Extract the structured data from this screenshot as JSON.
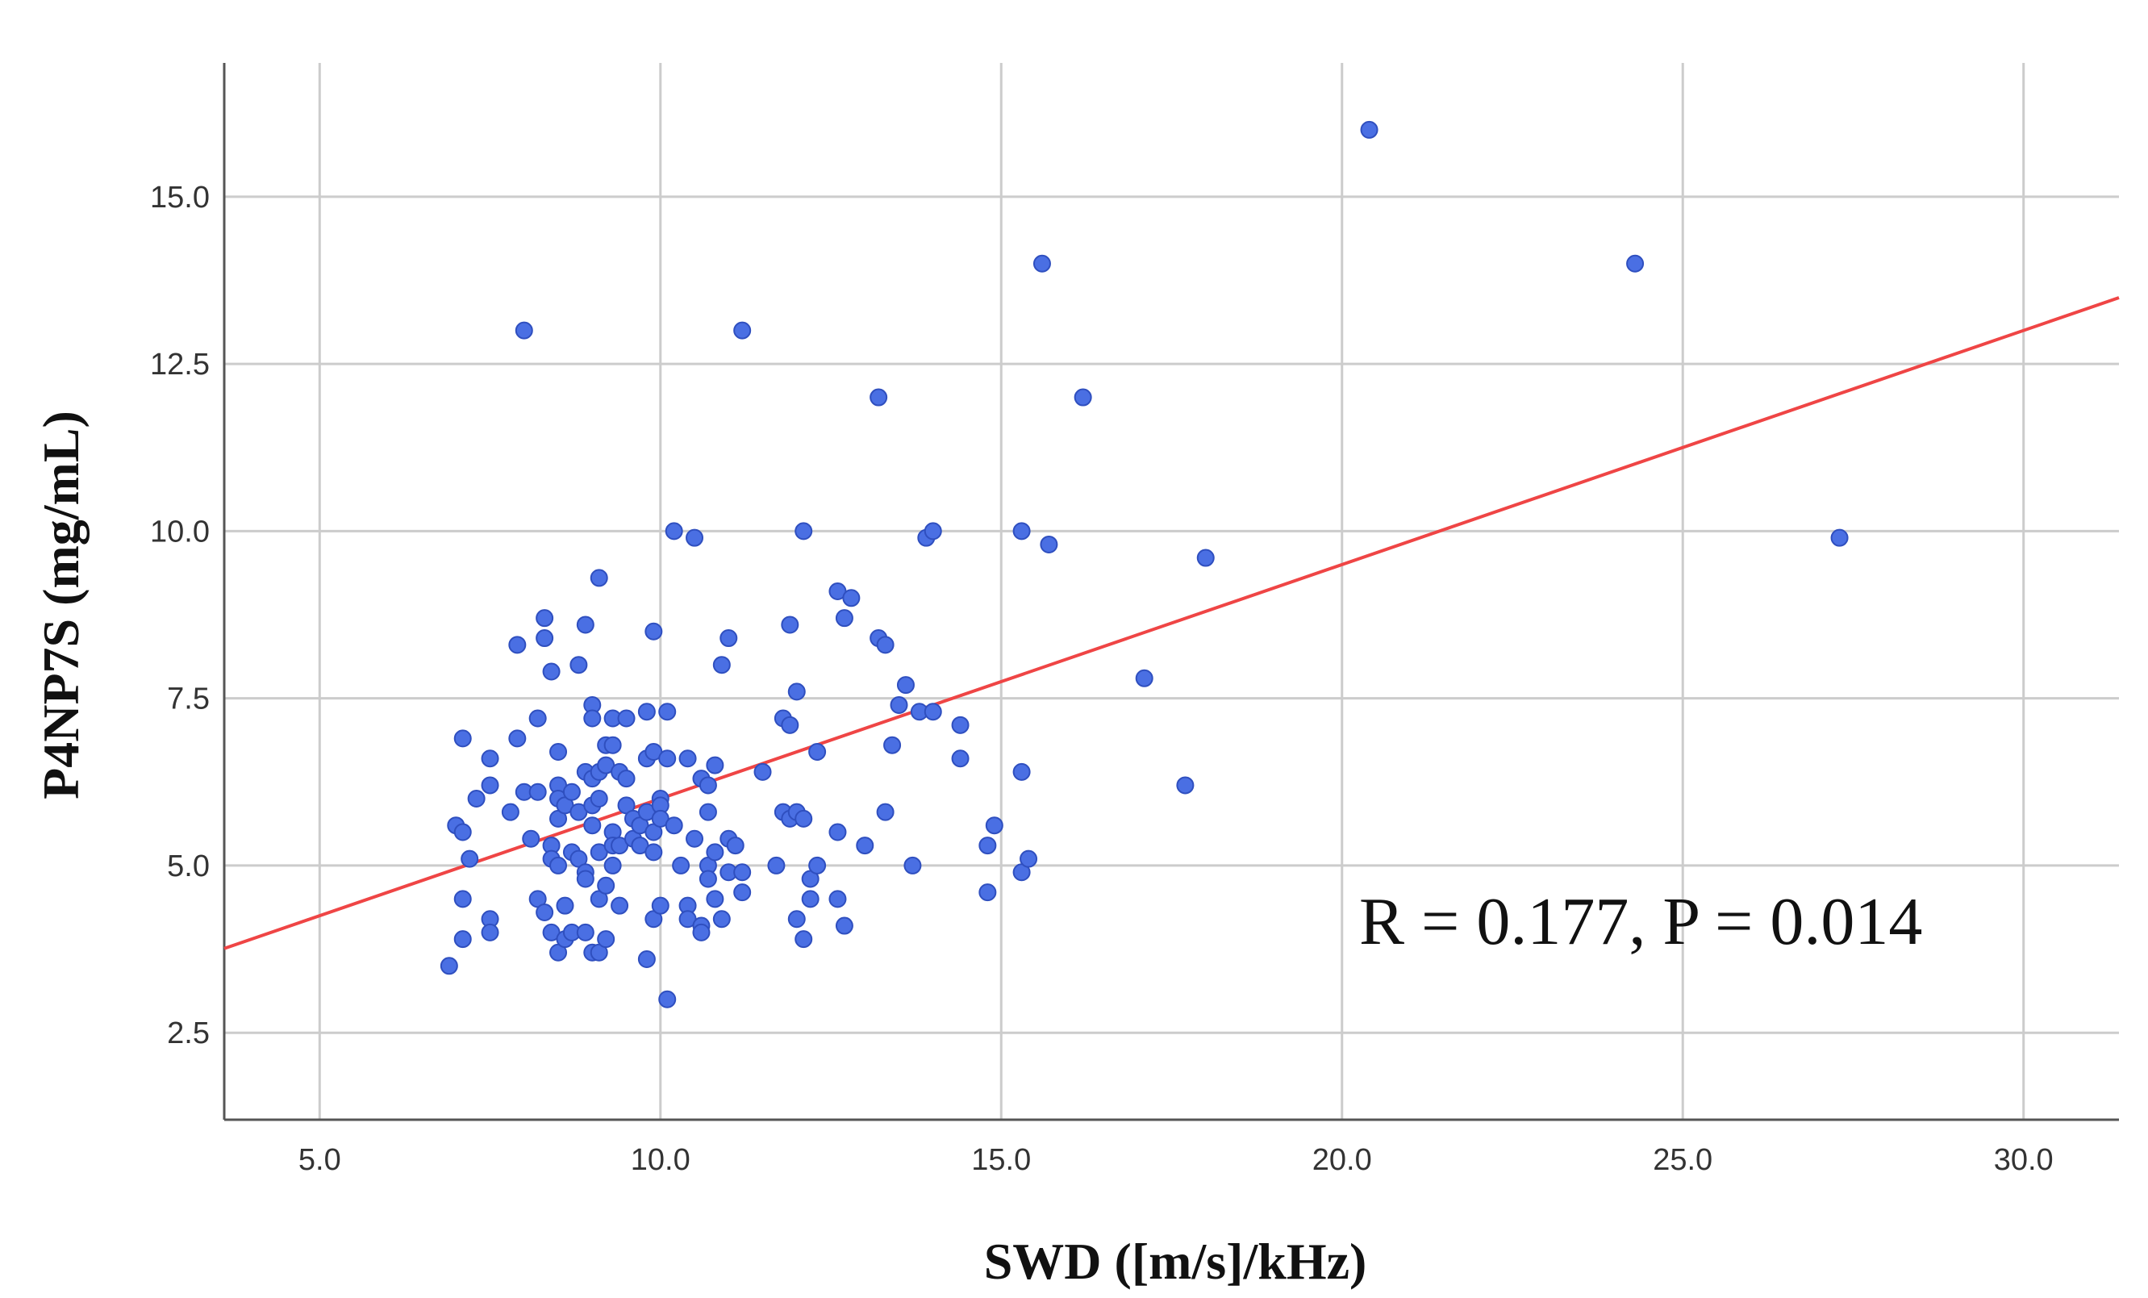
{
  "chart_data": {
    "type": "scatter",
    "title": "",
    "xlabel": "SWD ([m/s]/kHz)",
    "ylabel": "P4NP7S (mg/mL)",
    "xlim": [
      3.6,
      31.4
    ],
    "ylim": [
      1.2,
      17.0
    ],
    "x_ticks": [
      5.0,
      10.0,
      15.0,
      20.0,
      25.0,
      30.0
    ],
    "x_tick_labels": [
      "5.0",
      "10.0",
      "15.0",
      "20.0",
      "25.0",
      "30.0"
    ],
    "y_ticks": [
      2.5,
      5.0,
      7.5,
      10.0,
      12.5,
      15.0
    ],
    "y_tick_labels": [
      "2.5",
      "5.0",
      "7.5",
      "10.0",
      "12.5",
      "15.0"
    ],
    "grid": true,
    "point_color": "#4a6fe3",
    "point_edge_color": "#2f4fbf",
    "fit_line_color": "#ef4545",
    "fit_line": {
      "slope": 0.35,
      "intercept": 2.5
    },
    "annotation": "R = 0.177, P = 0.014",
    "points": [
      [
        6.9,
        3.5
      ],
      [
        7.0,
        5.6
      ],
      [
        7.1,
        5.5
      ],
      [
        7.1,
        6.9
      ],
      [
        7.1,
        4.5
      ],
      [
        7.1,
        3.9
      ],
      [
        7.2,
        5.1
      ],
      [
        7.3,
        6.0
      ],
      [
        7.5,
        6.6
      ],
      [
        7.5,
        6.2
      ],
      [
        7.5,
        4.2
      ],
      [
        7.5,
        4.0
      ],
      [
        7.8,
        5.8
      ],
      [
        7.9,
        6.9
      ],
      [
        7.9,
        8.3
      ],
      [
        8.0,
        13.0
      ],
      [
        8.0,
        6.1
      ],
      [
        8.1,
        5.4
      ],
      [
        8.2,
        7.2
      ],
      [
        8.2,
        6.1
      ],
      [
        8.2,
        4.5
      ],
      [
        8.3,
        8.7
      ],
      [
        8.3,
        8.4
      ],
      [
        8.3,
        4.3
      ],
      [
        8.4,
        7.9
      ],
      [
        8.4,
        5.3
      ],
      [
        8.4,
        5.1
      ],
      [
        8.4,
        4.0
      ],
      [
        8.5,
        6.7
      ],
      [
        8.5,
        6.2
      ],
      [
        8.5,
        6.0
      ],
      [
        8.5,
        5.7
      ],
      [
        8.5,
        5.0
      ],
      [
        8.5,
        3.7
      ],
      [
        8.6,
        5.9
      ],
      [
        8.6,
        4.4
      ],
      [
        8.6,
        3.9
      ],
      [
        8.7,
        6.1
      ],
      [
        8.7,
        5.2
      ],
      [
        8.7,
        4.0
      ],
      [
        8.8,
        8.0
      ],
      [
        8.8,
        5.8
      ],
      [
        8.8,
        5.1
      ],
      [
        8.9,
        8.6
      ],
      [
        8.9,
        6.4
      ],
      [
        8.9,
        4.9
      ],
      [
        8.9,
        4.8
      ],
      [
        8.9,
        4.0
      ],
      [
        9.0,
        7.4
      ],
      [
        9.0,
        7.2
      ],
      [
        9.0,
        6.3
      ],
      [
        9.0,
        5.9
      ],
      [
        9.0,
        5.6
      ],
      [
        9.0,
        3.7
      ],
      [
        9.1,
        9.3
      ],
      [
        9.1,
        6.4
      ],
      [
        9.1,
        6.0
      ],
      [
        9.1,
        5.2
      ],
      [
        9.1,
        4.5
      ],
      [
        9.1,
        3.7
      ],
      [
        9.2,
        6.8
      ],
      [
        9.2,
        6.5
      ],
      [
        9.2,
        4.7
      ],
      [
        9.2,
        3.9
      ],
      [
        9.3,
        7.2
      ],
      [
        9.3,
        6.8
      ],
      [
        9.3,
        5.5
      ],
      [
        9.3,
        5.3
      ],
      [
        9.3,
        5.0
      ],
      [
        9.4,
        6.4
      ],
      [
        9.4,
        5.3
      ],
      [
        9.4,
        4.4
      ],
      [
        9.5,
        7.2
      ],
      [
        9.5,
        6.3
      ],
      [
        9.5,
        5.9
      ],
      [
        9.6,
        5.7
      ],
      [
        9.6,
        5.4
      ],
      [
        9.7,
        5.6
      ],
      [
        9.7,
        5.3
      ],
      [
        9.8,
        7.3
      ],
      [
        9.8,
        6.6
      ],
      [
        9.8,
        5.8
      ],
      [
        9.8,
        3.6
      ],
      [
        9.9,
        8.5
      ],
      [
        9.9,
        6.7
      ],
      [
        9.9,
        5.5
      ],
      [
        9.9,
        5.2
      ],
      [
        9.9,
        4.2
      ],
      [
        10.0,
        6.0
      ],
      [
        10.0,
        5.9
      ],
      [
        10.0,
        5.7
      ],
      [
        10.0,
        4.4
      ],
      [
        10.1,
        7.3
      ],
      [
        10.1,
        6.6
      ],
      [
        10.1,
        3.0
      ],
      [
        10.2,
        10.0
      ],
      [
        10.2,
        5.6
      ],
      [
        10.3,
        5.0
      ],
      [
        10.4,
        6.6
      ],
      [
        10.4,
        4.4
      ],
      [
        10.4,
        4.2
      ],
      [
        10.5,
        9.9
      ],
      [
        10.5,
        5.4
      ],
      [
        10.6,
        6.3
      ],
      [
        10.6,
        4.1
      ],
      [
        10.6,
        4.0
      ],
      [
        10.7,
        6.2
      ],
      [
        10.7,
        5.8
      ],
      [
        10.7,
        5.0
      ],
      [
        10.7,
        4.8
      ],
      [
        10.8,
        6.5
      ],
      [
        10.8,
        5.2
      ],
      [
        10.8,
        4.5
      ],
      [
        10.9,
        8.0
      ],
      [
        10.9,
        4.2
      ],
      [
        11.0,
        8.4
      ],
      [
        11.0,
        5.4
      ],
      [
        11.0,
        4.9
      ],
      [
        11.1,
        5.3
      ],
      [
        11.2,
        13.0
      ],
      [
        11.2,
        4.9
      ],
      [
        11.2,
        4.6
      ],
      [
        11.5,
        6.4
      ],
      [
        11.7,
        5.0
      ],
      [
        11.8,
        7.2
      ],
      [
        11.8,
        5.8
      ],
      [
        11.9,
        8.6
      ],
      [
        11.9,
        7.1
      ],
      [
        11.9,
        5.7
      ],
      [
        12.0,
        7.6
      ],
      [
        12.0,
        5.8
      ],
      [
        12.0,
        4.2
      ],
      [
        12.1,
        10.0
      ],
      [
        12.1,
        5.7
      ],
      [
        12.1,
        3.9
      ],
      [
        12.2,
        4.8
      ],
      [
        12.2,
        4.5
      ],
      [
        12.3,
        6.7
      ],
      [
        12.3,
        5.0
      ],
      [
        12.6,
        9.1
      ],
      [
        12.6,
        5.5
      ],
      [
        12.6,
        4.5
      ],
      [
        12.7,
        8.7
      ],
      [
        12.7,
        4.1
      ],
      [
        12.8,
        9.0
      ],
      [
        13.0,
        5.3
      ],
      [
        13.2,
        12.0
      ],
      [
        13.2,
        8.4
      ],
      [
        13.3,
        8.3
      ],
      [
        13.3,
        5.8
      ],
      [
        13.4,
        6.8
      ],
      [
        13.5,
        7.4
      ],
      [
        13.6,
        7.7
      ],
      [
        13.7,
        5.0
      ],
      [
        13.8,
        7.3
      ],
      [
        13.9,
        9.9
      ],
      [
        14.0,
        10.0
      ],
      [
        14.0,
        7.3
      ],
      [
        14.4,
        7.1
      ],
      [
        14.4,
        6.6
      ],
      [
        14.8,
        5.3
      ],
      [
        14.8,
        4.6
      ],
      [
        14.9,
        5.6
      ],
      [
        15.3,
        10.0
      ],
      [
        15.3,
        6.4
      ],
      [
        15.3,
        4.9
      ],
      [
        15.4,
        5.1
      ],
      [
        15.6,
        14.0
      ],
      [
        15.7,
        9.8
      ],
      [
        16.2,
        12.0
      ],
      [
        17.1,
        7.8
      ],
      [
        17.7,
        6.2
      ],
      [
        18.0,
        9.6
      ],
      [
        20.4,
        16.0
      ],
      [
        24.3,
        14.0
      ],
      [
        27.3,
        9.9
      ]
    ]
  }
}
